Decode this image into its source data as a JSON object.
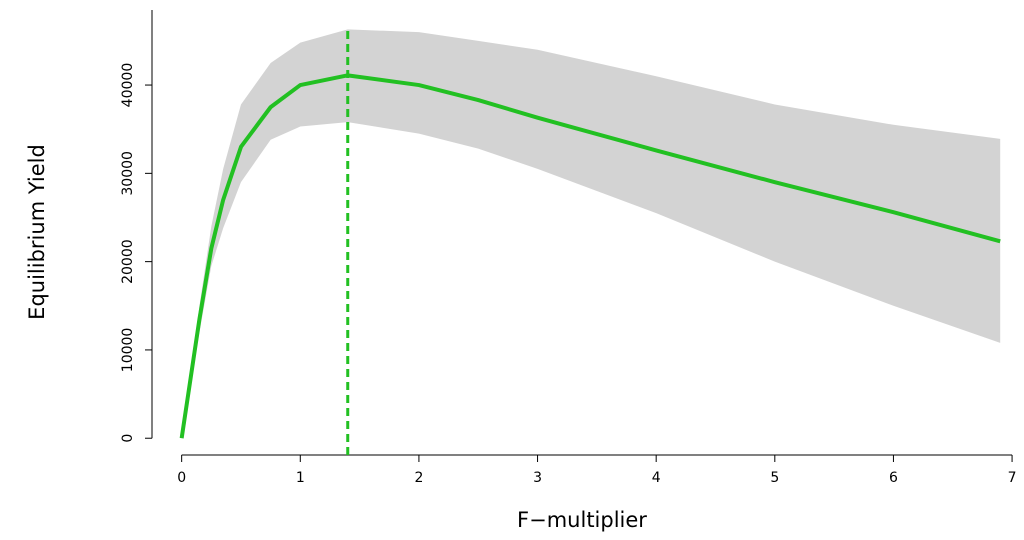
{
  "chart_data": {
    "type": "line",
    "x_label": "F−multiplier",
    "y_label": "Equilibrium Yield",
    "x": [
      0,
      0.05,
      0.1,
      0.15,
      0.25,
      0.35,
      0.5,
      0.75,
      1,
      1.4,
      2,
      2.5,
      3,
      4,
      5,
      6,
      6.9
    ],
    "values": [
      0,
      4500,
      9000,
      13500,
      21500,
      27000,
      33000,
      37500,
      40000,
      41100,
      40000,
      38300,
      36300,
      32600,
      29000,
      25600,
      22300
    ],
    "upper": [
      0,
      4800,
      9800,
      15000,
      24000,
      30500,
      37800,
      42500,
      44800,
      46300,
      46000,
      45000,
      44000,
      41000,
      37800,
      35500,
      33900
    ],
    "lower": [
      0,
      4200,
      8200,
      12000,
      19500,
      23800,
      29000,
      33800,
      35300,
      35800,
      34500,
      32800,
      30500,
      25500,
      20000,
      15000,
      10800
    ],
    "color": "#22c022",
    "band_color": "#d3d3d3",
    "vline": {
      "x": 1.4,
      "color": "#22c022"
    },
    "xlim": [
      -0.25,
      7.05
    ],
    "ylim": [
      -1900,
      48500
    ],
    "xticks": [
      0,
      1,
      2,
      3,
      4,
      5,
      6,
      7
    ],
    "yticks": [
      0,
      10000,
      20000,
      30000,
      40000
    ]
  }
}
